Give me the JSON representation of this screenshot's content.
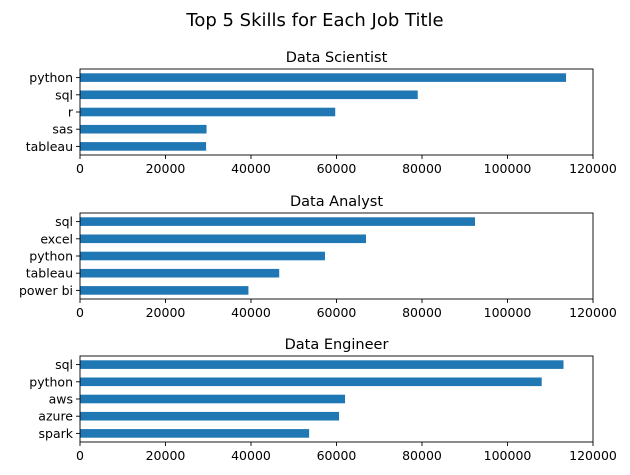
{
  "figure": {
    "suptitle": "Top 5 Skills for Each Job Title"
  },
  "chart_data": [
    {
      "type": "bar",
      "orientation": "horizontal",
      "title": "Data Scientist",
      "categories": [
        "python",
        "sql",
        "r",
        "sas",
        "tableau"
      ],
      "values": [
        113700,
        79000,
        59700,
        29600,
        29500
      ],
      "xlim": [
        0,
        120000
      ],
      "xticks": [
        0,
        20000,
        40000,
        60000,
        80000,
        100000,
        120000
      ],
      "xlabel": "",
      "ylabel": "",
      "bar_color": "#1f77b4",
      "grid": false,
      "legend": "none"
    },
    {
      "type": "bar",
      "orientation": "horizontal",
      "title": "Data Analyst",
      "categories": [
        "sql",
        "excel",
        "python",
        "tableau",
        "power bi"
      ],
      "values": [
        92400,
        66900,
        57300,
        46600,
        39400
      ],
      "xlim": [
        0,
        120000
      ],
      "xticks": [
        0,
        20000,
        40000,
        60000,
        80000,
        100000,
        120000
      ],
      "xlabel": "",
      "ylabel": "",
      "bar_color": "#1f77b4",
      "grid": false,
      "legend": "none"
    },
    {
      "type": "bar",
      "orientation": "horizontal",
      "title": "Data Engineer",
      "categories": [
        "sql",
        "python",
        "aws",
        "azure",
        "spark"
      ],
      "values": [
        113100,
        108000,
        62000,
        60600,
        53600
      ],
      "xlim": [
        0,
        120000
      ],
      "xticks": [
        0,
        20000,
        40000,
        60000,
        80000,
        100000,
        120000
      ],
      "xlabel": "",
      "ylabel": "",
      "bar_color": "#1f77b4",
      "grid": false,
      "legend": "none"
    }
  ]
}
